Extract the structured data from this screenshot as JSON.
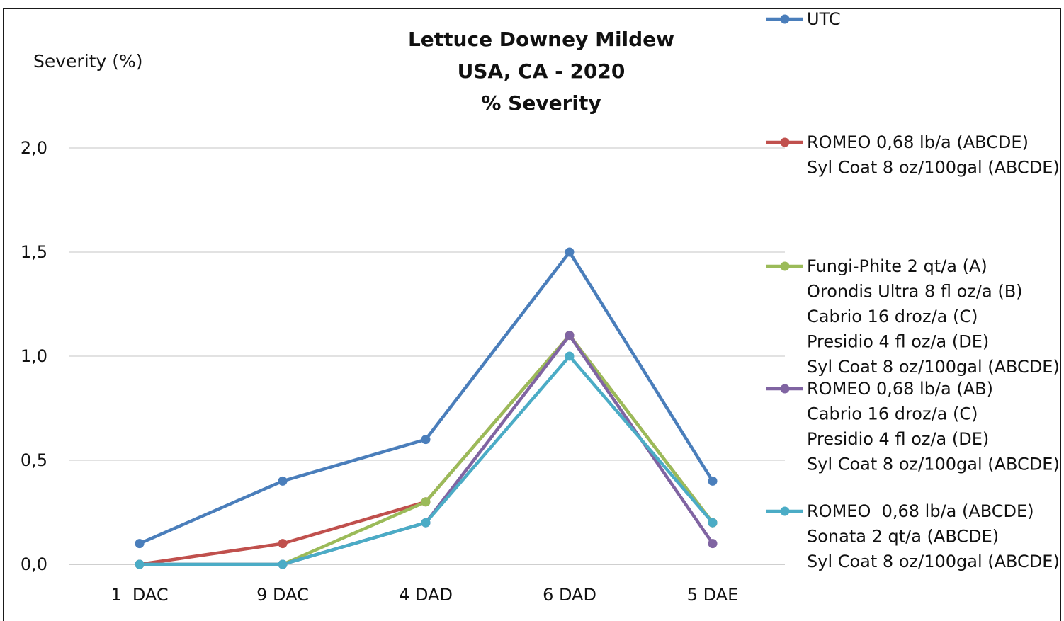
{
  "chart_data": {
    "type": "line",
    "title": [
      "Lettuce Downey Mildew",
      "USA, CA - 2020",
      "% Severity"
    ],
    "ylabel": "Severity (%)",
    "xlabel": "",
    "categories": [
      "1  DAC",
      "9 DAC",
      "4 DAD",
      "6 DAD",
      "5 DAE"
    ],
    "ylim": [
      0,
      2
    ],
    "yticks": [
      "0,0",
      "0,5",
      "1,0",
      "1,5",
      "2,0"
    ],
    "grid": true,
    "legend_position": "right",
    "series": [
      {
        "name": [
          "UTC"
        ],
        "color": "#4a7ebb",
        "values": [
          0.1,
          0.4,
          0.6,
          1.5,
          0.4
        ]
      },
      {
        "name": [
          "ROMEO 0,68 lb/a (ABCDE)",
          "Syl Coat 8 oz/100gal (ABCDE)"
        ],
        "color": "#c0504d",
        "values": [
          0.0,
          0.1,
          0.3,
          1.1,
          0.2
        ]
      },
      {
        "name": [
          "Fungi-Phite 2 qt/a (A)",
          "Orondis Ultra 8 fl oz/a (B)",
          "Cabrio 16 droz/a (C)",
          "Presidio 4 fl oz/a (DE)",
          "Syl Coat 8 oz/100gal (ABCDE)"
        ],
        "color": "#9bbb59",
        "values": [
          0.0,
          0.0,
          0.3,
          1.1,
          0.2
        ]
      },
      {
        "name": [
          "ROMEO 0,68 lb/a (AB)",
          "Cabrio 16 droz/a (C)",
          "Presidio 4 fl oz/a (DE)",
          "Syl Coat 8 oz/100gal (ABCDE)"
        ],
        "color": "#8064a2",
        "values": [
          0.0,
          0.0,
          0.2,
          1.1,
          0.1
        ]
      },
      {
        "name": [
          "ROMEO  0,68 lb/a (ABCDE)",
          "Sonata 2 qt/a (ABCDE)",
          "Syl Coat 8 oz/100gal (ABCDE)"
        ],
        "color": "#4bacc6",
        "values": [
          0.0,
          0.0,
          0.2,
          1.0,
          0.2
        ]
      }
    ]
  }
}
